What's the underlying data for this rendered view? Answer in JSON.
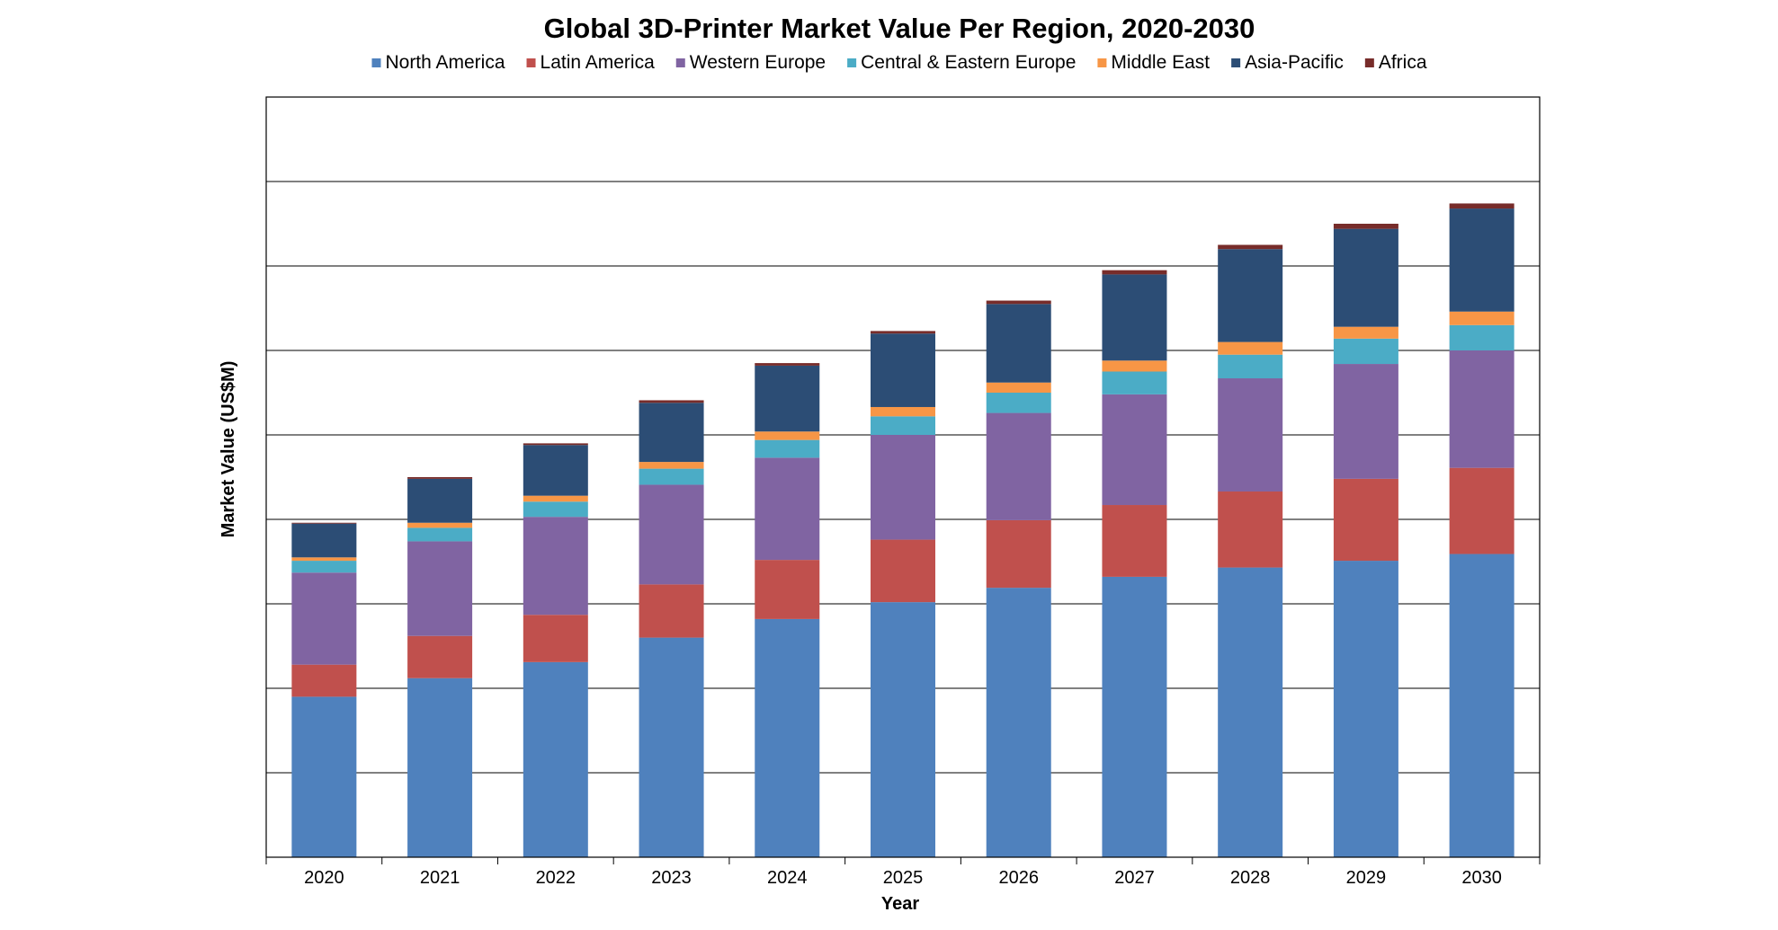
{
  "chart_data": {
    "type": "bar",
    "stacked": true,
    "title": "Global 3D-Printer Market Value Per Region, 2020-2030",
    "xlabel": "Year",
    "ylabel": "Market Value (US$M)",
    "ylim": [
      0,
      9
    ],
    "grid": true,
    "legend_position": "top",
    "y_tick_labels_visible": false,
    "categories": [
      "2020",
      "2021",
      "2022",
      "2023",
      "2024",
      "2025",
      "2026",
      "2027",
      "2028",
      "2029",
      "2030"
    ],
    "series": [
      {
        "name": "North America",
        "color": "#4F81BD",
        "values": [
          1.9,
          2.12,
          2.31,
          2.6,
          2.82,
          3.02,
          3.19,
          3.32,
          3.43,
          3.51,
          3.59
        ]
      },
      {
        "name": "Latin America",
        "color": "#C0504D",
        "values": [
          0.38,
          0.5,
          0.56,
          0.63,
          0.7,
          0.74,
          0.8,
          0.85,
          0.9,
          0.97,
          1.02
        ]
      },
      {
        "name": "Western Europe",
        "color": "#8064A2",
        "values": [
          1.09,
          1.12,
          1.16,
          1.18,
          1.21,
          1.24,
          1.27,
          1.31,
          1.34,
          1.36,
          1.39
        ]
      },
      {
        "name": "Central & Eastern Europe",
        "color": "#4BACC6",
        "values": [
          0.14,
          0.16,
          0.18,
          0.19,
          0.21,
          0.22,
          0.24,
          0.27,
          0.28,
          0.3,
          0.3
        ]
      },
      {
        "name": "Middle East",
        "color": "#F79646",
        "values": [
          0.04,
          0.06,
          0.07,
          0.08,
          0.1,
          0.11,
          0.12,
          0.13,
          0.15,
          0.14,
          0.16
        ]
      },
      {
        "name": "Asia-Pacific",
        "color": "#2C4D75",
        "values": [
          0.4,
          0.52,
          0.6,
          0.7,
          0.78,
          0.87,
          0.93,
          1.02,
          1.1,
          1.16,
          1.22
        ]
      },
      {
        "name": "Africa",
        "color": "#772C2A",
        "values": [
          0.01,
          0.02,
          0.02,
          0.03,
          0.03,
          0.03,
          0.04,
          0.05,
          0.05,
          0.06,
          0.06
        ]
      }
    ]
  }
}
